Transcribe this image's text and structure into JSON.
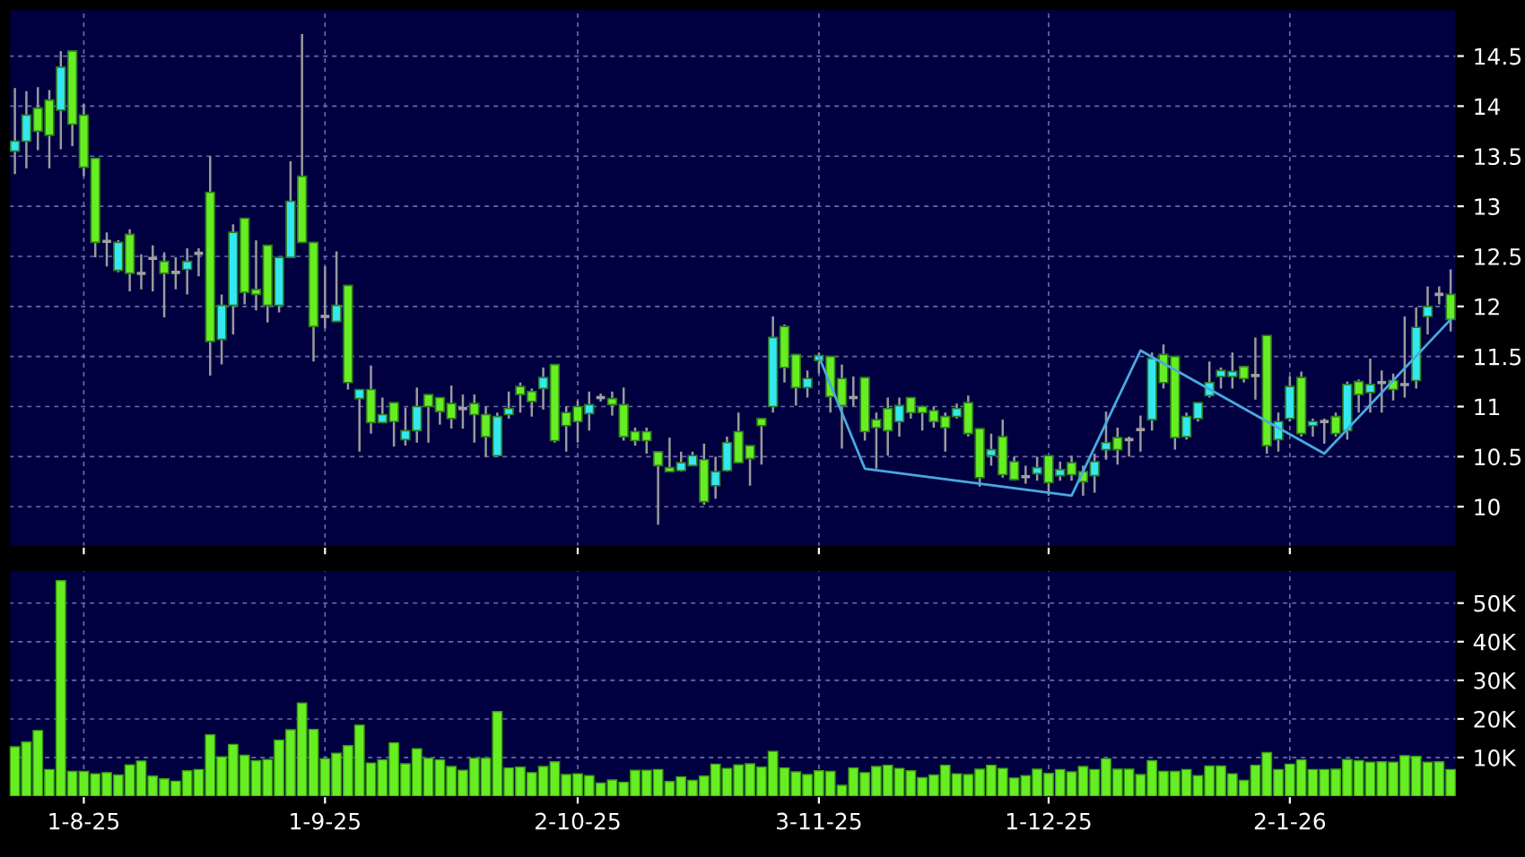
{
  "chart_data": [
    {
      "type": "candlestick",
      "ohlc": [
        [
          13.55,
          14.18,
          13.32,
          13.65
        ],
        [
          13.65,
          14.15,
          13.38,
          13.91
        ],
        [
          13.98,
          14.19,
          13.56,
          13.75
        ],
        [
          14.06,
          14.16,
          13.38,
          13.71
        ],
        [
          13.96,
          14.55,
          13.57,
          14.39
        ],
        [
          14.55,
          14.55,
          13.6,
          13.82
        ],
        [
          13.91,
          14.02,
          13.3,
          13.39
        ],
        [
          13.48,
          13.48,
          12.49,
          12.64
        ],
        [
          12.65,
          12.74,
          12.4,
          12.65
        ],
        [
          12.36,
          12.66,
          12.34,
          12.64
        ],
        [
          12.72,
          12.77,
          12.15,
          12.33
        ],
        [
          12.33,
          12.52,
          12.17,
          12.33
        ],
        [
          12.48,
          12.61,
          12.15,
          12.48
        ],
        [
          12.45,
          12.54,
          11.89,
          12.33
        ],
        [
          12.34,
          12.49,
          12.17,
          12.34
        ],
        [
          12.37,
          12.58,
          12.12,
          12.45
        ],
        [
          12.53,
          12.58,
          12.3,
          12.53
        ],
        [
          13.14,
          13.5,
          11.31,
          11.65
        ],
        [
          11.67,
          12.12,
          11.42,
          12.01
        ],
        [
          12.01,
          12.82,
          11.72,
          12.74
        ],
        [
          12.88,
          12.88,
          12.02,
          12.14
        ],
        [
          12.17,
          12.66,
          11.96,
          12.12
        ],
        [
          12.61,
          12.61,
          11.84,
          12.01
        ],
        [
          12.01,
          12.49,
          11.94,
          12.49
        ],
        [
          12.49,
          13.45,
          12.49,
          13.05
        ],
        [
          13.3,
          14.72,
          12.64,
          12.64
        ],
        [
          12.64,
          12.64,
          11.45,
          11.8
        ],
        [
          11.9,
          12.4,
          11.78,
          11.9
        ],
        [
          11.85,
          12.55,
          11.85,
          12.01
        ],
        [
          12.21,
          12.21,
          11.17,
          11.24
        ],
        [
          11.08,
          11.17,
          10.55,
          11.17
        ],
        [
          11.17,
          11.41,
          10.73,
          10.84
        ],
        [
          10.84,
          11.09,
          10.84,
          10.92
        ],
        [
          11.04,
          11.04,
          10.6,
          10.85
        ],
        [
          10.67,
          10.99,
          10.61,
          10.76
        ],
        [
          10.76,
          11.19,
          10.64,
          11.0
        ],
        [
          11.12,
          11.12,
          10.64,
          11.0
        ],
        [
          11.09,
          11.09,
          10.82,
          10.95
        ],
        [
          11.03,
          11.21,
          10.78,
          10.88
        ],
        [
          10.98,
          11.12,
          10.78,
          10.98
        ],
        [
          11.03,
          11.12,
          10.64,
          10.92
        ],
        [
          10.92,
          11.0,
          10.5,
          10.7
        ],
        [
          10.51,
          10.94,
          10.5,
          10.9
        ],
        [
          10.92,
          11.15,
          10.88,
          10.98
        ],
        [
          11.2,
          11.24,
          10.94,
          11.12
        ],
        [
          11.15,
          11.18,
          10.9,
          11.05
        ],
        [
          11.18,
          11.39,
          10.97,
          11.29
        ],
        [
          11.42,
          11.42,
          10.64,
          10.66
        ],
        [
          10.94,
          11.0,
          10.55,
          10.81
        ],
        [
          11.0,
          11.06,
          10.64,
          10.85
        ],
        [
          10.93,
          11.15,
          10.76,
          11.02
        ],
        [
          11.09,
          11.13,
          11.05,
          11.09
        ],
        [
          11.08,
          11.15,
          10.91,
          11.02
        ],
        [
          11.02,
          11.19,
          10.66,
          10.7
        ],
        [
          10.75,
          10.79,
          10.61,
          10.66
        ],
        [
          10.75,
          10.79,
          10.53,
          10.66
        ],
        [
          10.55,
          10.55,
          9.82,
          10.41
        ],
        [
          10.39,
          10.69,
          10.35,
          10.35
        ],
        [
          10.36,
          10.55,
          10.35,
          10.44
        ],
        [
          10.41,
          10.55,
          10.41,
          10.51
        ],
        [
          10.47,
          10.63,
          10.02,
          10.05
        ],
        [
          10.21,
          10.5,
          10.08,
          10.35
        ],
        [
          10.36,
          10.7,
          10.35,
          10.64
        ],
        [
          10.75,
          10.94,
          10.44,
          10.44
        ],
        [
          10.61,
          10.61,
          10.21,
          10.48
        ],
        [
          10.88,
          10.88,
          10.42,
          10.81
        ],
        [
          11.0,
          11.9,
          10.94,
          11.69
        ],
        [
          11.8,
          11.82,
          11.24,
          11.39
        ],
        [
          11.52,
          11.52,
          11.01,
          11.19
        ],
        [
          11.19,
          11.36,
          11.09,
          11.28
        ],
        [
          11.46,
          11.54,
          11.33,
          11.51
        ],
        [
          11.5,
          11.5,
          10.94,
          11.1
        ],
        [
          11.28,
          11.42,
          10.58,
          11.01
        ],
        [
          11.09,
          11.3,
          11.0,
          11.09
        ],
        [
          11.29,
          11.29,
          10.66,
          10.75
        ],
        [
          10.87,
          10.94,
          10.38,
          10.79
        ],
        [
          10.98,
          11.09,
          10.51,
          10.76
        ],
        [
          10.85,
          11.09,
          10.7,
          11.01
        ],
        [
          11.09,
          11.09,
          10.88,
          10.94
        ],
        [
          11.0,
          11.01,
          10.76,
          10.94
        ],
        [
          10.96,
          11.0,
          10.79,
          10.85
        ],
        [
          10.9,
          10.94,
          10.55,
          10.79
        ],
        [
          10.9,
          11.03,
          10.88,
          10.98
        ],
        [
          11.04,
          11.11,
          10.7,
          10.73
        ],
        [
          10.78,
          10.78,
          10.2,
          10.29
        ],
        [
          10.51,
          10.73,
          10.41,
          10.57
        ],
        [
          10.7,
          10.87,
          10.29,
          10.32
        ],
        [
          10.45,
          10.5,
          10.26,
          10.27
        ],
        [
          10.3,
          10.41,
          10.23,
          10.3
        ],
        [
          10.33,
          10.5,
          10.26,
          10.39
        ],
        [
          10.51,
          10.51,
          10.11,
          10.24
        ],
        [
          10.31,
          10.45,
          10.26,
          10.37
        ],
        [
          10.44,
          10.51,
          10.26,
          10.32
        ],
        [
          10.35,
          10.41,
          10.11,
          10.25
        ],
        [
          10.31,
          10.53,
          10.14,
          10.45
        ],
        [
          10.57,
          10.95,
          10.47,
          10.64
        ],
        [
          10.69,
          10.79,
          10.42,
          10.57
        ],
        [
          10.67,
          10.7,
          10.5,
          10.67
        ],
        [
          10.77,
          10.91,
          10.55,
          10.77
        ],
        [
          10.87,
          11.54,
          10.76,
          11.48
        ],
        [
          11.52,
          11.62,
          11.18,
          11.24
        ],
        [
          11.5,
          11.5,
          10.57,
          10.69
        ],
        [
          10.7,
          10.94,
          10.67,
          10.9
        ],
        [
          10.88,
          11.04,
          10.85,
          11.04
        ],
        [
          11.11,
          11.45,
          11.09,
          11.24
        ],
        [
          11.3,
          11.39,
          11.18,
          11.36
        ],
        [
          11.3,
          11.54,
          11.18,
          11.35
        ],
        [
          11.4,
          11.4,
          11.24,
          11.28
        ],
        [
          11.31,
          11.69,
          11.07,
          11.31
        ],
        [
          11.71,
          11.71,
          10.53,
          10.61
        ],
        [
          10.67,
          10.94,
          10.55,
          10.85
        ],
        [
          10.88,
          11.3,
          10.85,
          11.2
        ],
        [
          11.29,
          11.35,
          10.7,
          10.73
        ],
        [
          10.81,
          10.88,
          10.7,
          10.85
        ],
        [
          10.85,
          10.88,
          10.63,
          10.85
        ],
        [
          10.9,
          10.94,
          10.7,
          10.73
        ],
        [
          10.76,
          11.25,
          10.67,
          11.22
        ],
        [
          11.25,
          11.27,
          10.94,
          11.12
        ],
        [
          11.14,
          11.48,
          10.94,
          11.22
        ],
        [
          11.24,
          11.36,
          10.94,
          11.24
        ],
        [
          11.26,
          11.33,
          11.06,
          11.17
        ],
        [
          11.22,
          11.9,
          11.09,
          11.22
        ],
        [
          11.26,
          11.99,
          11.18,
          11.79
        ],
        [
          11.9,
          12.2,
          11.72,
          12.0
        ],
        [
          12.12,
          12.2,
          12.02,
          12.12
        ],
        [
          12.12,
          12.37,
          11.75,
          11.87
        ]
      ],
      "colors": [
        "#33e8f0",
        "#33e8f0",
        "#66ee22",
        "#66ee22",
        "#33e8f0",
        "#66ee22",
        "#66ee22",
        "#66ee22",
        "#a0a0a0",
        "#33e8f0",
        "#66ee22",
        "#a0a0a0",
        "#a0a0a0",
        "#66ee22",
        "#a0a0a0",
        "#33e8f0",
        "#a0a0a0",
        "#66ee22",
        "#33e8f0",
        "#33e8f0",
        "#66ee22",
        "#66ee22",
        "#66ee22",
        "#33e8f0",
        "#33e8f0",
        "#66ee22",
        "#66ee22",
        "#a0a0a0",
        "#33e8f0",
        "#66ee22",
        "#33e8f0",
        "#66ee22",
        "#33e8f0",
        "#66ee22",
        "#33e8f0",
        "#33e8f0",
        "#66ee22",
        "#66ee22",
        "#66ee22",
        "#a0a0a0",
        "#66ee22",
        "#66ee22",
        "#33e8f0",
        "#33e8f0",
        "#66ee22",
        "#66ee22",
        "#33e8f0",
        "#66ee22",
        "#66ee22",
        "#66ee22",
        "#33e8f0",
        "#a0a0a0",
        "#66ee22",
        "#66ee22",
        "#66ee22",
        "#66ee22",
        "#66ee22",
        "#66ee22",
        "#33e8f0",
        "#33e8f0",
        "#66ee22",
        "#33e8f0",
        "#33e8f0",
        "#66ee22",
        "#66ee22",
        "#66ee22",
        "#33e8f0",
        "#66ee22",
        "#66ee22",
        "#33e8f0",
        "#33e8f0",
        "#66ee22",
        "#66ee22",
        "#a0a0a0",
        "#66ee22",
        "#66ee22",
        "#66ee22",
        "#33e8f0",
        "#66ee22",
        "#66ee22",
        "#66ee22",
        "#66ee22",
        "#33e8f0",
        "#66ee22",
        "#66ee22",
        "#33e8f0",
        "#66ee22",
        "#66ee22",
        "#a0a0a0",
        "#33e8f0",
        "#66ee22",
        "#33e8f0",
        "#66ee22",
        "#66ee22",
        "#33e8f0",
        "#33e8f0",
        "#66ee22",
        "#a0a0a0",
        "#a0a0a0",
        "#33e8f0",
        "#66ee22",
        "#66ee22",
        "#33e8f0",
        "#33e8f0",
        "#33e8f0",
        "#33e8f0",
        "#33e8f0",
        "#66ee22",
        "#a0a0a0",
        "#66ee22",
        "#33e8f0",
        "#33e8f0",
        "#66ee22",
        "#33e8f0",
        "#a0a0a0",
        "#66ee22",
        "#33e8f0",
        "#66ee22",
        "#33e8f0",
        "#a0a0a0",
        "#66ee22",
        "#a0a0a0",
        "#33e8f0",
        "#33e8f0",
        "#a0a0a0",
        "#66ee22"
      ],
      "series": [
        {
          "type": "line",
          "color": "#4aa8e0",
          "values": [
            null,
            null,
            null,
            null,
            null,
            null,
            null,
            null,
            null,
            null,
            null,
            null,
            null,
            null,
            null,
            null,
            null,
            null,
            null,
            null,
            null,
            null,
            null,
            null,
            null,
            null,
            null,
            null,
            null,
            null,
            null,
            null,
            null,
            null,
            null,
            null,
            null,
            null,
            null,
            null,
            null,
            null,
            null,
            null,
            null,
            null,
            null,
            null,
            null,
            null,
            null,
            null,
            null,
            null,
            null,
            null,
            null,
            null,
            null,
            null,
            null,
            null,
            null,
            null,
            null,
            null,
            null,
            null,
            null,
            null,
            11.5,
            null,
            null,
            null,
            10.38,
            null,
            null,
            null,
            null,
            null,
            null,
            null,
            null,
            null,
            null,
            null,
            null,
            null,
            null,
            null,
            null,
            null,
            10.11,
            null,
            null,
            null,
            null,
            null,
            11.56,
            null,
            null,
            null,
            null,
            null,
            null,
            null,
            null,
            null,
            null,
            null,
            null,
            null,
            null,
            null,
            10.53,
            null,
            null,
            null,
            null,
            null,
            null,
            null,
            null,
            null,
            null,
            11.87
          ]
        }
      ],
      "ylim": [
        9.6,
        14.97
      ],
      "yticks": [
        10,
        10.5,
        11,
        11.5,
        12,
        12.5,
        13,
        13.5,
        14,
        14.5
      ],
      "grid": true,
      "tick_labels": "y"
    },
    {
      "type": "bar",
      "categories": [
        null,
        null,
        null,
        null,
        null,
        null,
        "1-8-25",
        null,
        null,
        null,
        null,
        null,
        null,
        null,
        null,
        null,
        null,
        null,
        null,
        null,
        null,
        null,
        null,
        null,
        null,
        null,
        null,
        "1-9-25",
        null,
        null,
        null,
        null,
        null,
        null,
        null,
        null,
        null,
        null,
        null,
        null,
        null,
        null,
        null,
        null,
        null,
        null,
        null,
        null,
        null,
        "2-10-25",
        null,
        null,
        null,
        null,
        null,
        null,
        null,
        null,
        null,
        null,
        null,
        null,
        null,
        null,
        null,
        null,
        null,
        null,
        null,
        null,
        "3-11-25",
        null,
        null,
        null,
        null,
        null,
        null,
        null,
        null,
        null,
        null,
        null,
        null,
        null,
        null,
        null,
        null,
        null,
        null,
        null,
        "1-12-25",
        null,
        null,
        null,
        null,
        null,
        null,
        null,
        null,
        null,
        null,
        null,
        null,
        null,
        null,
        null,
        null,
        null,
        null,
        null,
        null,
        "2-1-26",
        null,
        null,
        null,
        null,
        null,
        null,
        null,
        null,
        null,
        null,
        null,
        null,
        null,
        null
      ],
      "values": [
        12800,
        14000,
        17000,
        6900,
        55800,
        6400,
        6400,
        5800,
        6100,
        5500,
        8100,
        9100,
        5200,
        4500,
        3900,
        6600,
        6900,
        15900,
        10200,
        13400,
        10600,
        9200,
        9500,
        14500,
        17200,
        24100,
        17300,
        9700,
        11100,
        13100,
        18400,
        8600,
        9400,
        13800,
        8400,
        12300,
        9800,
        9400,
        7700,
        6700,
        9800,
        9800,
        21900,
        7300,
        7500,
        6100,
        7700,
        8900,
        5600,
        5800,
        5300,
        3400,
        4200,
        3600,
        6700,
        6700,
        6900,
        3800,
        5000,
        4100,
        5200,
        8300,
        7200,
        8100,
        8400,
        7500,
        11600,
        7300,
        6300,
        5600,
        6600,
        6400,
        2800,
        7300,
        6100,
        7700,
        8000,
        7200,
        6600,
        4800,
        5500,
        8000,
        5800,
        5600,
        7000,
        8000,
        7200,
        4700,
        5300,
        7000,
        5900,
        6900,
        6300,
        7700,
        6900,
        9700,
        7000,
        7000,
        5600,
        9200,
        6400,
        6400,
        6900,
        5300,
        7800,
        7800,
        5800,
        4100,
        8000,
        11300,
        6900,
        8300,
        9400,
        6900,
        6900,
        7000,
        9500,
        9200,
        8800,
        8900,
        8800,
        10500,
        10300,
        8800,
        8900,
        6900
      ],
      "color": "#66ee22",
      "ylim": [
        0,
        58500
      ],
      "yticks": [
        {
          "value": 10000,
          "label": "10K"
        },
        {
          "value": 20000,
          "label": "20K"
        },
        {
          "value": 30000,
          "label": "30K"
        },
        {
          "value": 40000,
          "label": "40K"
        },
        {
          "value": 50000,
          "label": "50K"
        }
      ],
      "grid": true
    }
  ]
}
